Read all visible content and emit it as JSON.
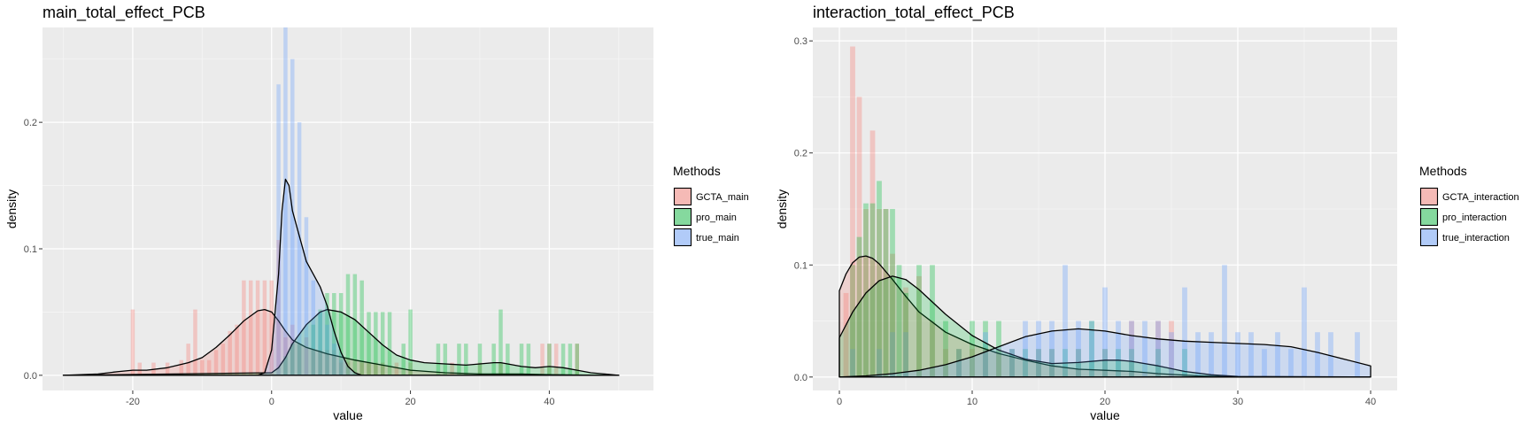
{
  "chart_data": [
    {
      "type": "histogram+density",
      "title": "main_total_effect_PCB",
      "xlabel": "value",
      "ylabel": "density",
      "xlim": [
        -33,
        55
      ],
      "ylim": [
        -0.012,
        0.275
      ],
      "xticks": [
        -20,
        0,
        20,
        40
      ],
      "yticks": [
        0.0,
        0.1,
        0.2
      ],
      "ytick_labels": [
        "0.0",
        "0.1",
        "0.2"
      ],
      "legend_title": "Methods",
      "legend_position": "right",
      "series": [
        {
          "name": "GCTA_main",
          "color": "#F8766D",
          "bins_center": [
            -20,
            -19,
            -17,
            -15,
            -13,
            -12,
            -11,
            -10,
            -9,
            -8,
            -7,
            -6,
            -5,
            -4,
            -3,
            -2,
            -1,
            0,
            1,
            2,
            3,
            4,
            5,
            6,
            7,
            8,
            9,
            10,
            11,
            13,
            14,
            15,
            16,
            18,
            20,
            26,
            30,
            33,
            39,
            40,
            41,
            44
          ],
          "bins_density": [
            0.052,
            0.01,
            0.01,
            0.01,
            0.012,
            0.025,
            0.052,
            0.012,
            0.012,
            0.02,
            0.025,
            0.035,
            0.04,
            0.075,
            0.075,
            0.075,
            0.075,
            0.075,
            0.107,
            0.03,
            0.04,
            0.025,
            0.03,
            0.02,
            0.02,
            0.02,
            0.02,
            0.01,
            0.01,
            0.01,
            0.01,
            0.01,
            0.01,
            0.01,
            0.01,
            0.01,
            0.01,
            0.01,
            0.025,
            0.025,
            0.025,
            0.025
          ],
          "density_x": [
            -30,
            -25,
            -22,
            -20,
            -18,
            -15,
            -12,
            -10,
            -8,
            -6,
            -4,
            -2,
            -1,
            0,
            1,
            2,
            3,
            5,
            8,
            12,
            16,
            20,
            25,
            30,
            33,
            36,
            40,
            45,
            50
          ],
          "density_y": [
            0,
            0.001,
            0.003,
            0.004,
            0.004,
            0.006,
            0.01,
            0.014,
            0.022,
            0.032,
            0.043,
            0.051,
            0.052,
            0.05,
            0.043,
            0.035,
            0.028,
            0.022,
            0.017,
            0.012,
            0.008,
            0.004,
            0.002,
            0.001,
            0.001,
            0.001,
            0.0005,
            0.0002,
            0
          ]
        },
        {
          "name": "pro_main",
          "color": "#00BA38",
          "bins_center": [
            2,
            3,
            4,
            6,
            7,
            8,
            9,
            10,
            11,
            12,
            13,
            14,
            15,
            16,
            17,
            19,
            20,
            24,
            25,
            27,
            28,
            30,
            32,
            33,
            34,
            36,
            37,
            40,
            42,
            43,
            44
          ],
          "bins_density": [
            0.015,
            0.025,
            0.025,
            0.04,
            0.052,
            0.065,
            0.065,
            0.065,
            0.08,
            0.08,
            0.075,
            0.05,
            0.05,
            0.05,
            0.05,
            0.025,
            0.052,
            0.025,
            0.025,
            0.025,
            0.025,
            0.025,
            0.025,
            0.052,
            0.025,
            0.025,
            0.025,
            0.025,
            0.025,
            0.025,
            0.025
          ],
          "density_x": [
            -30,
            0,
            1,
            2,
            3,
            5,
            7,
            8,
            10,
            12,
            14,
            16,
            18,
            20,
            22,
            25,
            28,
            30,
            32,
            33,
            34,
            36,
            38,
            40,
            42,
            44,
            46,
            48,
            50
          ],
          "density_y": [
            0,
            0.002,
            0.006,
            0.014,
            0.025,
            0.04,
            0.05,
            0.052,
            0.05,
            0.044,
            0.034,
            0.024,
            0.016,
            0.012,
            0.01,
            0.009,
            0.008,
            0.009,
            0.01,
            0.01,
            0.009,
            0.007,
            0.006,
            0.007,
            0.006,
            0.004,
            0.002,
            0.001,
            0
          ]
        },
        {
          "name": "true_main",
          "color": "#619CFF",
          "bins_center": [
            1,
            2,
            3,
            4,
            5,
            6,
            7,
            8,
            9,
            10
          ],
          "bins_density": [
            0.23,
            0.275,
            0.25,
            0.2,
            0.125,
            0.075,
            0.05,
            0.04,
            0.025,
            0.012
          ],
          "density_x": [
            -30,
            -2,
            -1,
            0,
            1,
            1.5,
            2,
            2.5,
            3,
            4,
            5,
            6,
            7,
            8,
            9,
            10,
            11,
            12,
            13,
            50
          ],
          "density_y": [
            0,
            0,
            0.002,
            0.02,
            0.08,
            0.13,
            0.155,
            0.15,
            0.13,
            0.11,
            0.09,
            0.08,
            0.07,
            0.055,
            0.035,
            0.018,
            0.007,
            0.002,
            0,
            0
          ]
        }
      ]
    },
    {
      "type": "histogram+density",
      "title": "interaction_total_effect_PCB",
      "xlabel": "value",
      "ylabel": "density",
      "xlim": [
        -2,
        42
      ],
      "ylim": [
        -0.012,
        0.312
      ],
      "xticks": [
        0,
        10,
        20,
        30,
        40
      ],
      "yticks": [
        0.0,
        0.1,
        0.2,
        0.3
      ],
      "ytick_labels": [
        "0.0",
        "0.1",
        "0.2",
        "0.3"
      ],
      "legend_title": "Methods",
      "legend_position": "right",
      "series": [
        {
          "name": "GCTA_interaction",
          "color": "#F8766D",
          "bins_center": [
            0.5,
            1,
            1.5,
            2,
            2.5,
            3,
            3.5,
            4,
            5,
            6,
            7,
            8,
            9,
            10,
            11,
            12,
            13,
            15,
            16,
            18,
            20,
            22,
            24,
            25
          ],
          "bins_density": [
            0.075,
            0.295,
            0.25,
            0.15,
            0.22,
            0.15,
            0.15,
            0.11,
            0.08,
            0.09,
            0.05,
            0.025,
            0.025,
            0.025,
            0.025,
            0.025,
            0.025,
            0.025,
            0.025,
            0.025,
            0.025,
            0.05,
            0.05,
            0.05
          ],
          "density_x": [
            0,
            0.5,
            1,
            1.5,
            2,
            2.5,
            3,
            4,
            5,
            6,
            8,
            10,
            12,
            14,
            16,
            18,
            20,
            22,
            24,
            27,
            30,
            40
          ],
          "density_y": [
            0.077,
            0.092,
            0.102,
            0.107,
            0.108,
            0.106,
            0.101,
            0.087,
            0.072,
            0.058,
            0.04,
            0.029,
            0.021,
            0.015,
            0.01,
            0.007,
            0.006,
            0.005,
            0.003,
            0.001,
            0,
            0
          ]
        },
        {
          "name": "pro_interaction",
          "color": "#00BA38",
          "bins_center": [
            1,
            1.5,
            2,
            2.5,
            3,
            3.5,
            4,
            4.5,
            5,
            6,
            7,
            8,
            9,
            10,
            11,
            12,
            13,
            14,
            15,
            16,
            17,
            18,
            19,
            20,
            21,
            22,
            24,
            26
          ],
          "bins_density": [
            0.1,
            0.125,
            0.155,
            0.155,
            0.175,
            0.15,
            0.15,
            0.1,
            0.075,
            0.1,
            0.1,
            0.05,
            0.025,
            0.05,
            0.05,
            0.05,
            0.025,
            0.025,
            0.025,
            0.025,
            0.025,
            0.025,
            0.05,
            0.025,
            0.025,
            0.025,
            0.025,
            0.025
          ],
          "density_x": [
            0,
            1,
            2,
            3,
            4,
            5,
            6,
            8,
            10,
            12,
            14,
            16,
            18,
            20,
            21,
            22,
            24,
            26,
            28,
            30,
            40
          ],
          "density_y": [
            0.035,
            0.058,
            0.075,
            0.086,
            0.09,
            0.087,
            0.078,
            0.056,
            0.037,
            0.024,
            0.016,
            0.012,
            0.013,
            0.015,
            0.015,
            0.014,
            0.01,
            0.005,
            0.002,
            0.0005,
            0
          ]
        },
        {
          "name": "true_interaction",
          "color": "#619CFF",
          "bins_center": [
            1,
            3,
            4,
            5,
            9,
            11,
            13,
            14,
            15,
            16,
            17,
            18,
            19,
            20,
            21,
            22,
            23,
            24,
            25,
            26,
            27,
            28,
            29,
            30,
            31,
            32,
            33,
            34,
            35,
            36,
            37,
            39
          ],
          "bins_density": [
            0.025,
            0.025,
            0.04,
            0.04,
            0.025,
            0.04,
            0.025,
            0.05,
            0.05,
            0.05,
            0.1,
            0.05,
            0.05,
            0.08,
            0.05,
            0.05,
            0.05,
            0.05,
            0.04,
            0.08,
            0.04,
            0.04,
            0.1,
            0.04,
            0.04,
            0.025,
            0.04,
            0.025,
            0.08,
            0.04,
            0.04,
            0.04
          ],
          "density_x": [
            0,
            2,
            4,
            6,
            8,
            10,
            12,
            14,
            16,
            18,
            20,
            22,
            24,
            26,
            28,
            30,
            32,
            34,
            36,
            38,
            40
          ],
          "density_y": [
            0,
            0.001,
            0.003,
            0.006,
            0.011,
            0.018,
            0.027,
            0.036,
            0.041,
            0.043,
            0.041,
            0.037,
            0.034,
            0.032,
            0.031,
            0.03,
            0.029,
            0.027,
            0.022,
            0.016,
            0.01
          ]
        }
      ]
    }
  ]
}
